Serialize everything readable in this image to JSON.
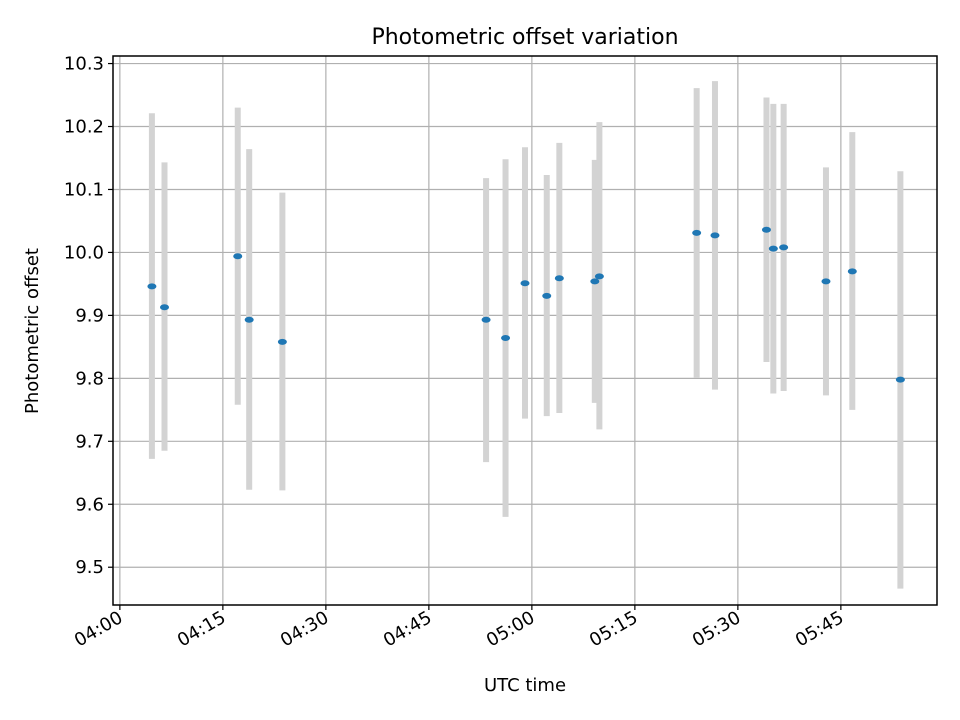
{
  "chart_data": {
    "type": "scatter",
    "title": "Photometric offset variation",
    "xlabel": "UTC time",
    "ylabel": "Photometric offset",
    "xlim": [
      "03:59",
      "05:59"
    ],
    "ylim": [
      9.44,
      10.312
    ],
    "grid": true,
    "x_ticks": [
      "04:00",
      "04:15",
      "04:30",
      "04:45",
      "05:00",
      "05:15",
      "05:30",
      "05:45"
    ],
    "y_ticks": [
      "9.5",
      "9.6",
      "9.7",
      "9.8",
      "9.9",
      "10.0",
      "10.1",
      "10.2",
      "10.3"
    ],
    "colors": {
      "marker": "#1f77b4",
      "errorbar": "#d3d3d3",
      "grid": "#b0b0b0"
    },
    "series": [
      {
        "points": [
          {
            "x": "04:04:40",
            "y": 9.946,
            "yerr_low": 9.672,
            "yerr_high": 10.221
          },
          {
            "x": "04:06:30",
            "y": 9.913,
            "yerr_low": 9.685,
            "yerr_high": 10.143
          },
          {
            "x": "04:17:10",
            "y": 9.994,
            "yerr_low": 9.758,
            "yerr_high": 10.23
          },
          {
            "x": "04:18:50",
            "y": 9.893,
            "yerr_low": 9.623,
            "yerr_high": 10.164
          },
          {
            "x": "04:23:40",
            "y": 9.858,
            "yerr_low": 9.622,
            "yerr_high": 10.095
          },
          {
            "x": "04:53:20",
            "y": 9.893,
            "yerr_low": 9.667,
            "yerr_high": 10.118
          },
          {
            "x": "04:56:10",
            "y": 9.864,
            "yerr_low": 9.58,
            "yerr_high": 10.148
          },
          {
            "x": "04:59:00",
            "y": 9.951,
            "yerr_low": 9.736,
            "yerr_high": 10.167
          },
          {
            "x": "05:02:10",
            "y": 9.931,
            "yerr_low": 9.74,
            "yerr_high": 10.123
          },
          {
            "x": "05:04:00",
            "y": 9.959,
            "yerr_low": 9.745,
            "yerr_high": 10.174
          },
          {
            "x": "05:09:10",
            "y": 9.954,
            "yerr_low": 9.761,
            "yerr_high": 10.147
          },
          {
            "x": "05:09:50",
            "y": 9.962,
            "yerr_low": 9.719,
            "yerr_high": 10.207
          },
          {
            "x": "05:24:00",
            "y": 10.031,
            "yerr_low": 9.801,
            "yerr_high": 10.261
          },
          {
            "x": "05:26:40",
            "y": 10.027,
            "yerr_low": 9.782,
            "yerr_high": 10.272
          },
          {
            "x": "05:34:10",
            "y": 10.036,
            "yerr_low": 9.826,
            "yerr_high": 10.246
          },
          {
            "x": "05:35:10",
            "y": 10.006,
            "yerr_low": 9.776,
            "yerr_high": 10.236
          },
          {
            "x": "05:36:40",
            "y": 10.008,
            "yerr_low": 9.78,
            "yerr_high": 10.236
          },
          {
            "x": "05:42:50",
            "y": 9.954,
            "yerr_low": 9.773,
            "yerr_high": 10.135
          },
          {
            "x": "05:46:40",
            "y": 9.97,
            "yerr_low": 9.75,
            "yerr_high": 10.191
          },
          {
            "x": "05:53:40",
            "y": 9.798,
            "yerr_low": 9.466,
            "yerr_high": 10.129
          }
        ]
      }
    ]
  }
}
